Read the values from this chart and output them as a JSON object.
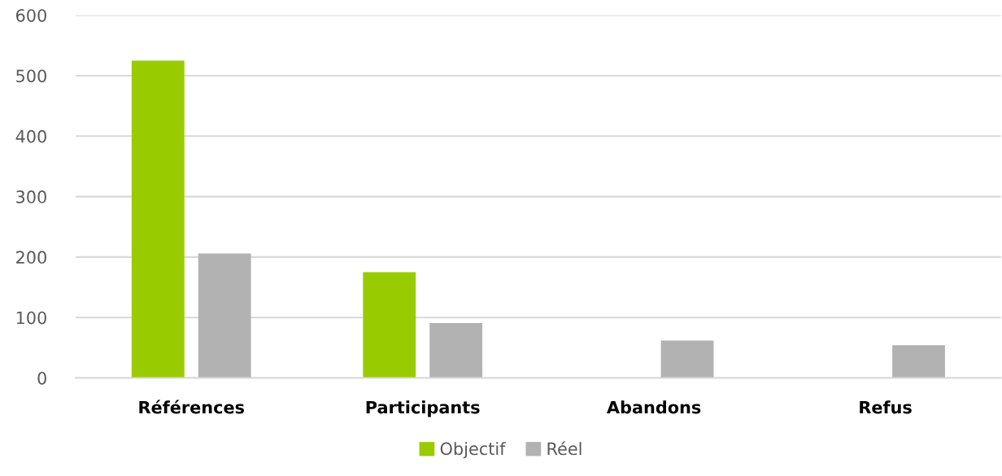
{
  "chart_data": {
    "type": "bar",
    "categories": [
      "Références",
      "Participants",
      "Abandons",
      "Refus"
    ],
    "series": [
      {
        "name": "Objectif",
        "color": "#99cc00",
        "values": [
          525,
          175,
          null,
          null
        ]
      },
      {
        "name": "Réel",
        "color": "#b2b2b2",
        "values": [
          206,
          91,
          62,
          54
        ]
      }
    ],
    "ylim": [
      0,
      600
    ],
    "yticks": [
      0,
      100,
      200,
      300,
      400,
      500,
      600
    ],
    "grid": "y",
    "legend": "bottom"
  }
}
